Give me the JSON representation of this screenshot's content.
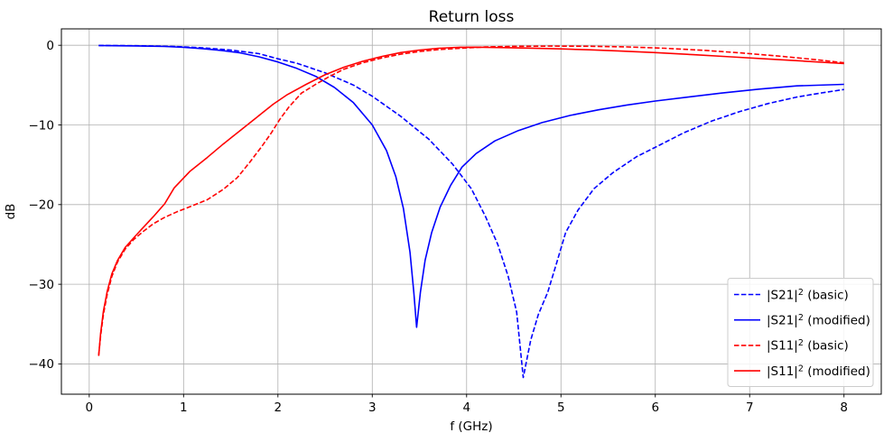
{
  "chart_data": {
    "type": "line",
    "title": "Return loss",
    "xlabel": "f (GHz)",
    "ylabel": "dB",
    "xlim": [
      -0.295,
      8.395
    ],
    "ylim": [
      -43.8,
      2.06
    ],
    "xticks": [
      0,
      1,
      2,
      3,
      4,
      5,
      6,
      7,
      8
    ],
    "yticks": [
      0,
      -10,
      -20,
      -30,
      -40
    ],
    "grid": true,
    "grid_color": "#b0b0b0",
    "spine_color": "#000000",
    "background": "#ffffff",
    "legend": {
      "position": "lower right",
      "border_color": "#cccccc",
      "fill_color": "#ffffff"
    },
    "series": [
      {
        "name": "|S21|² (basic)",
        "color": "#0000ff",
        "style": "dashed",
        "points": [
          [
            0.1,
            -0.02
          ],
          [
            0.5,
            -0.06
          ],
          [
            0.9,
            -0.15
          ],
          [
            1.2,
            -0.32
          ],
          [
            1.5,
            -0.6
          ],
          [
            1.8,
            -1.05
          ],
          [
            2.0,
            -1.7
          ],
          [
            2.2,
            -2.25
          ],
          [
            2.5,
            -3.45
          ],
          [
            2.8,
            -5.0
          ],
          [
            3.0,
            -6.4
          ],
          [
            3.3,
            -8.9
          ],
          [
            3.6,
            -11.8
          ],
          [
            3.85,
            -14.9
          ],
          [
            4.05,
            -18.0
          ],
          [
            4.2,
            -21.5
          ],
          [
            4.33,
            -25.0
          ],
          [
            4.44,
            -29.0
          ],
          [
            4.53,
            -33.5
          ],
          [
            4.6,
            -41.7
          ],
          [
            4.68,
            -37.0
          ],
          [
            4.76,
            -33.8
          ],
          [
            4.86,
            -31.0
          ],
          [
            4.95,
            -27.5
          ],
          [
            5.05,
            -23.5
          ],
          [
            5.18,
            -20.7
          ],
          [
            5.35,
            -18.0
          ],
          [
            5.55,
            -16.0
          ],
          [
            5.8,
            -14.0
          ],
          [
            6.05,
            -12.5
          ],
          [
            6.3,
            -11.0
          ],
          [
            6.6,
            -9.5
          ],
          [
            6.9,
            -8.3
          ],
          [
            7.2,
            -7.3
          ],
          [
            7.5,
            -6.5
          ],
          [
            7.75,
            -6.0
          ],
          [
            8.0,
            -5.55
          ]
        ]
      },
      {
        "name": "|S21|² (modified)",
        "color": "#0000ff",
        "style": "solid",
        "points": [
          [
            0.1,
            -0.03
          ],
          [
            0.5,
            -0.08
          ],
          [
            0.8,
            -0.15
          ],
          [
            1.0,
            -0.25
          ],
          [
            1.2,
            -0.42
          ],
          [
            1.4,
            -0.65
          ],
          [
            1.6,
            -0.95
          ],
          [
            1.8,
            -1.45
          ],
          [
            2.0,
            -2.1
          ],
          [
            2.2,
            -2.9
          ],
          [
            2.4,
            -3.9
          ],
          [
            2.6,
            -5.3
          ],
          [
            2.8,
            -7.2
          ],
          [
            3.0,
            -10.0
          ],
          [
            3.15,
            -13.2
          ],
          [
            3.25,
            -16.5
          ],
          [
            3.33,
            -20.5
          ],
          [
            3.4,
            -26.0
          ],
          [
            3.44,
            -31.0
          ],
          [
            3.47,
            -35.4
          ],
          [
            3.51,
            -31.0
          ],
          [
            3.56,
            -27.0
          ],
          [
            3.63,
            -23.5
          ],
          [
            3.72,
            -20.3
          ],
          [
            3.83,
            -17.6
          ],
          [
            3.95,
            -15.3
          ],
          [
            4.1,
            -13.6
          ],
          [
            4.3,
            -12.0
          ],
          [
            4.55,
            -10.7
          ],
          [
            4.8,
            -9.7
          ],
          [
            5.1,
            -8.8
          ],
          [
            5.4,
            -8.1
          ],
          [
            5.7,
            -7.5
          ],
          [
            6.0,
            -7.0
          ],
          [
            6.35,
            -6.5
          ],
          [
            6.7,
            -6.0
          ],
          [
            7.1,
            -5.5
          ],
          [
            7.5,
            -5.1
          ],
          [
            8.0,
            -4.9
          ]
        ]
      },
      {
        "name": "|S11|² (basic)",
        "color": "#ff0000",
        "style": "dashed",
        "points": [
          [
            0.1,
            -38.9
          ],
          [
            0.12,
            -36.5
          ],
          [
            0.15,
            -33.8
          ],
          [
            0.19,
            -31.3
          ],
          [
            0.24,
            -29.0
          ],
          [
            0.3,
            -27.2
          ],
          [
            0.38,
            -25.6
          ],
          [
            0.47,
            -24.4
          ],
          [
            0.57,
            -23.4
          ],
          [
            0.68,
            -22.4
          ],
          [
            0.8,
            -21.6
          ],
          [
            0.93,
            -20.9
          ],
          [
            1.08,
            -20.2
          ],
          [
            1.25,
            -19.4
          ],
          [
            1.42,
            -18.1
          ],
          [
            1.57,
            -16.6
          ],
          [
            1.7,
            -14.7
          ],
          [
            1.83,
            -12.7
          ],
          [
            1.93,
            -11.0
          ],
          [
            2.02,
            -9.3
          ],
          [
            2.12,
            -7.7
          ],
          [
            2.25,
            -6.0
          ],
          [
            2.4,
            -4.9
          ],
          [
            2.55,
            -3.9
          ],
          [
            2.7,
            -3.0
          ],
          [
            2.9,
            -2.2
          ],
          [
            3.1,
            -1.6
          ],
          [
            3.3,
            -1.12
          ],
          [
            3.5,
            -0.78
          ],
          [
            3.7,
            -0.55
          ],
          [
            3.95,
            -0.36
          ],
          [
            4.2,
            -0.22
          ],
          [
            4.5,
            -0.14
          ],
          [
            4.9,
            -0.1
          ],
          [
            5.3,
            -0.12
          ],
          [
            5.7,
            -0.2
          ],
          [
            6.1,
            -0.38
          ],
          [
            6.5,
            -0.62
          ],
          [
            6.9,
            -0.95
          ],
          [
            7.3,
            -1.35
          ],
          [
            7.65,
            -1.75
          ],
          [
            8.0,
            -2.2
          ]
        ]
      },
      {
        "name": "|S11|² (modified)",
        "color": "#ff0000",
        "style": "solid",
        "points": [
          [
            0.1,
            -39.0
          ],
          [
            0.12,
            -36.2
          ],
          [
            0.15,
            -33.4
          ],
          [
            0.19,
            -30.9
          ],
          [
            0.24,
            -28.7
          ],
          [
            0.3,
            -27.0
          ],
          [
            0.38,
            -25.4
          ],
          [
            0.47,
            -24.2
          ],
          [
            0.57,
            -22.9
          ],
          [
            0.68,
            -21.5
          ],
          [
            0.8,
            -19.9
          ],
          [
            0.9,
            -17.9
          ],
          [
            1.07,
            -15.8
          ],
          [
            1.25,
            -14.1
          ],
          [
            1.42,
            -12.4
          ],
          [
            1.6,
            -10.7
          ],
          [
            1.78,
            -9.0
          ],
          [
            1.95,
            -7.4
          ],
          [
            2.1,
            -6.2
          ],
          [
            2.3,
            -4.9
          ],
          [
            2.5,
            -3.7
          ],
          [
            2.7,
            -2.75
          ],
          [
            2.9,
            -2.0
          ],
          [
            3.1,
            -1.4
          ],
          [
            3.3,
            -0.92
          ],
          [
            3.5,
            -0.6
          ],
          [
            3.7,
            -0.38
          ],
          [
            3.9,
            -0.26
          ],
          [
            4.1,
            -0.24
          ],
          [
            4.4,
            -0.3
          ],
          [
            4.7,
            -0.36
          ],
          [
            5.0,
            -0.45
          ],
          [
            5.3,
            -0.57
          ],
          [
            5.6,
            -0.7
          ],
          [
            6.0,
            -0.92
          ],
          [
            6.4,
            -1.18
          ],
          [
            6.8,
            -1.45
          ],
          [
            7.2,
            -1.72
          ],
          [
            7.6,
            -2.0
          ],
          [
            8.0,
            -2.3
          ]
        ]
      }
    ]
  }
}
